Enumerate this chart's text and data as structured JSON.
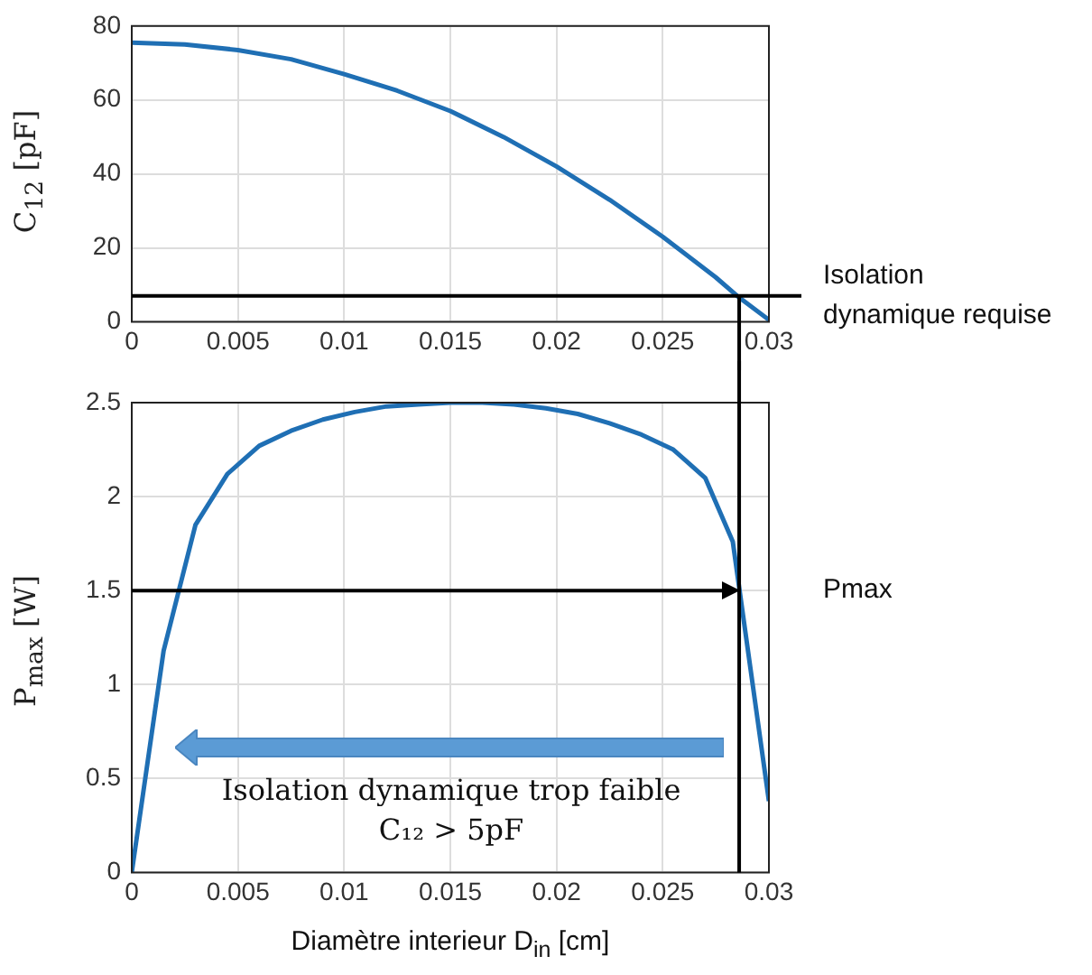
{
  "chart_data": [
    {
      "type": "line",
      "ylabel": "C$_{12}$ [pF]",
      "x": [
        0,
        0.0025,
        0.005,
        0.0075,
        0.01,
        0.0125,
        0.015,
        0.0175,
        0.02,
        0.0225,
        0.025,
        0.0275,
        0.0285,
        0.03
      ],
      "series": [
        {
          "color": "#1f6fb4",
          "values": [
            75.5,
            75,
            73.5,
            71,
            67,
            62.5,
            57,
            50,
            42,
            33,
            23,
            12,
            7,
            0.5
          ]
        }
      ],
      "xlim": [
        0,
        0.03
      ],
      "xticks": [
        0,
        0.005,
        0.01,
        0.015,
        0.02,
        0.025,
        0.03
      ],
      "ylim": [
        0,
        80
      ],
      "yticks": [
        0,
        20,
        40,
        60,
        80
      ],
      "grid": true,
      "marker": "none",
      "line_style": "solid",
      "ref_lines": [
        {
          "axis": "y",
          "value": 7,
          "label": "Isolation dynamique requise"
        },
        {
          "axis": "x",
          "value": 0.0286
        }
      ]
    },
    {
      "type": "line",
      "ylabel": "P$_{max}$ [W]",
      "xlabel": "Diamètre interieur D$_{in}$ [cm]",
      "x": [
        0,
        0.0015,
        0.003,
        0.0045,
        0.006,
        0.0075,
        0.009,
        0.0105,
        0.012,
        0.0135,
        0.015,
        0.0165,
        0.018,
        0.0195,
        0.021,
        0.0225,
        0.024,
        0.0255,
        0.027,
        0.0283,
        0.03
      ],
      "series": [
        {
          "color": "#1f6fb4",
          "values": [
            0,
            1.18,
            1.85,
            2.12,
            2.27,
            2.35,
            2.41,
            2.45,
            2.48,
            2.49,
            2.5,
            2.5,
            2.49,
            2.47,
            2.44,
            2.39,
            2.33,
            2.25,
            2.1,
            1.76,
            0.38
          ]
        }
      ],
      "xlim": [
        0,
        0.03
      ],
      "xticks": [
        0,
        0.005,
        0.01,
        0.015,
        0.02,
        0.025,
        0.03
      ],
      "ylim": [
        0,
        2.5
      ],
      "yticks": [
        0,
        0.5,
        1,
        1.5,
        2,
        2.5
      ],
      "grid": true,
      "marker": "none",
      "line_style": "solid",
      "ref_lines": [
        {
          "axis": "y",
          "value": 1.5,
          "label": "Pmax"
        },
        {
          "axis": "x",
          "value": 0.0286
        }
      ],
      "annotations": [
        "Isolation dynamique trop faible",
        "C₁₂ > 5pF"
      ]
    }
  ]
}
